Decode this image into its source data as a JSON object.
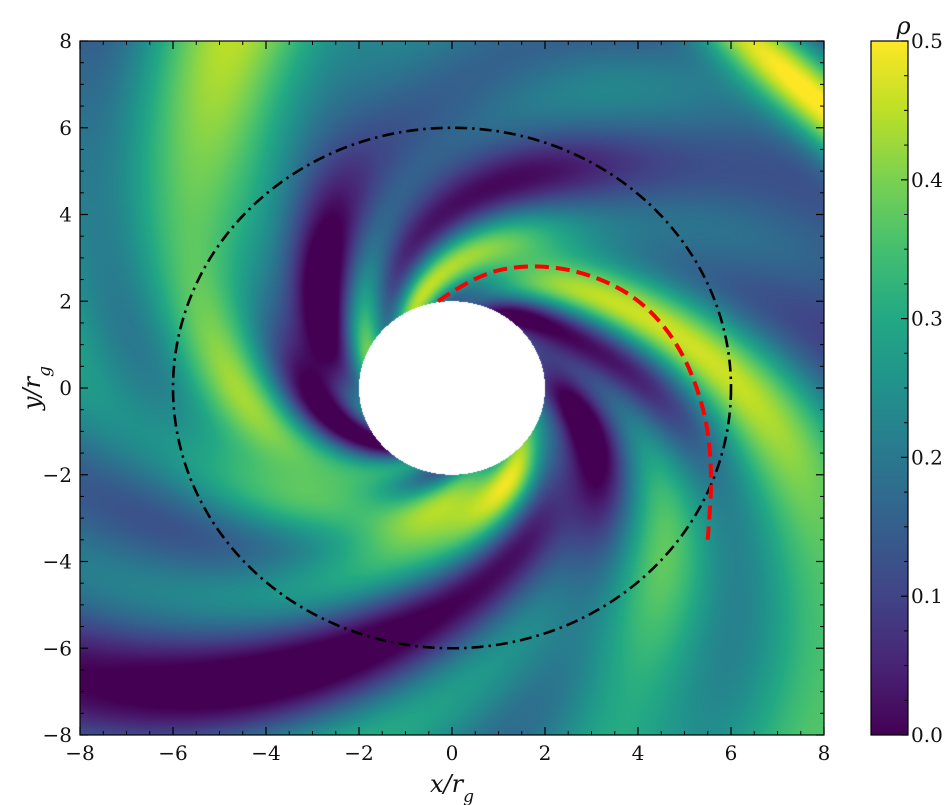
{
  "chart_data": {
    "type": "heatmap",
    "title": "",
    "xlabel": "x/r_g",
    "ylabel": "y/r_g",
    "xlim": [
      -8,
      8
    ],
    "ylim": [
      -8,
      8
    ],
    "xticks": [
      -8,
      -6,
      -4,
      -2,
      0,
      2,
      4,
      6,
      8
    ],
    "yticks": [
      -8,
      -6,
      -4,
      -2,
      0,
      2,
      4,
      6,
      8
    ],
    "xtick_labels": [
      "−8",
      "−6",
      "−4",
      "−2",
      "0",
      "2",
      "4",
      "6",
      "8"
    ],
    "ytick_labels": [
      "−8",
      "−6",
      "−4",
      "−2",
      "0",
      "2",
      "4",
      "6",
      "8"
    ],
    "colorbar": {
      "label": "ρ",
      "range": [
        0.0,
        0.5
      ],
      "ticks": [
        0.0,
        0.1,
        0.2,
        0.3,
        0.4,
        0.5
      ],
      "tick_labels": [
        "0.0",
        "0.1",
        "0.2",
        "0.3",
        "0.4",
        "0.5"
      ],
      "colormap": "viridis"
    },
    "excised_region": {
      "shape": "circle",
      "center": [
        0,
        0
      ],
      "radius": 2,
      "color": "#ffffff"
    },
    "overlays": [
      {
        "name": "circle",
        "shape": "circle",
        "center": [
          0,
          0
        ],
        "radius": 6,
        "style": "dash-dot",
        "color": "#000000"
      },
      {
        "name": "arc",
        "shape": "dashed-curve",
        "style": "dashed",
        "color": "#ff0000",
        "points": [
          [
            -0.3,
            2.0
          ],
          [
            0.5,
            2.6
          ],
          [
            1.6,
            2.85
          ],
          [
            2.8,
            2.7
          ],
          [
            4.0,
            2.1
          ],
          [
            4.9,
            1.0
          ],
          [
            5.45,
            -0.5
          ],
          [
            5.6,
            -2.0
          ],
          [
            5.5,
            -3.5
          ]
        ]
      }
    ],
    "grid": false
  }
}
